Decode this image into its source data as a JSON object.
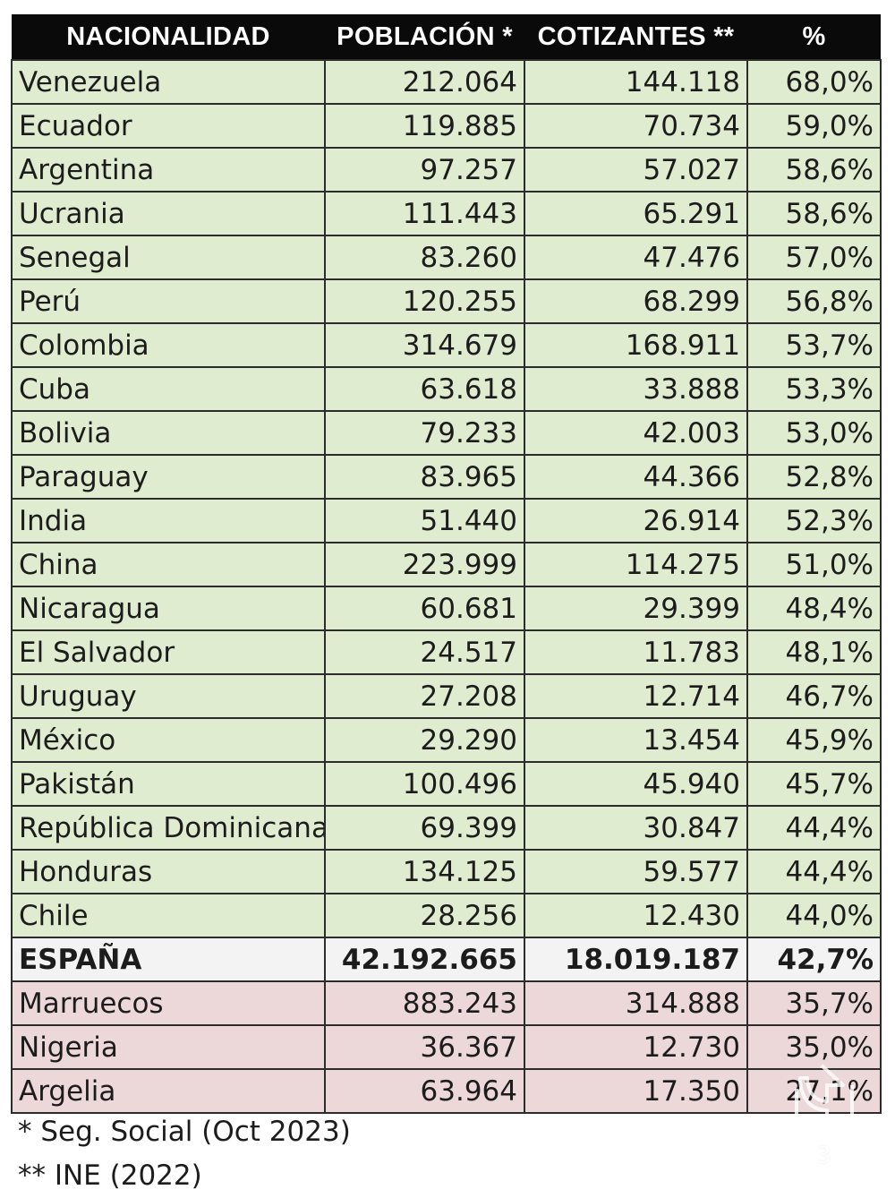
{
  "table": {
    "headers": [
      "NACIONALIDAD",
      "POBLACIÓN *",
      "COTIZANTES **",
      "%"
    ],
    "rows": [
      {
        "nacionalidad": "Venezuela",
        "poblacion": "212.064",
        "cotizantes": "144.118",
        "pct": "68,0%",
        "group": "green"
      },
      {
        "nacionalidad": "Ecuador",
        "poblacion": "119.885",
        "cotizantes": "70.734",
        "pct": "59,0%",
        "group": "green"
      },
      {
        "nacionalidad": "Argentina",
        "poblacion": "97.257",
        "cotizantes": "57.027",
        "pct": "58,6%",
        "group": "green"
      },
      {
        "nacionalidad": "Ucrania",
        "poblacion": "111.443",
        "cotizantes": "65.291",
        "pct": "58,6%",
        "group": "green"
      },
      {
        "nacionalidad": "Senegal",
        "poblacion": "83.260",
        "cotizantes": "47.476",
        "pct": "57,0%",
        "group": "green"
      },
      {
        "nacionalidad": "Perú",
        "poblacion": "120.255",
        "cotizantes": "68.299",
        "pct": "56,8%",
        "group": "green"
      },
      {
        "nacionalidad": "Colombia",
        "poblacion": "314.679",
        "cotizantes": "168.911",
        "pct": "53,7%",
        "group": "green"
      },
      {
        "nacionalidad": "Cuba",
        "poblacion": "63.618",
        "cotizantes": "33.888",
        "pct": "53,3%",
        "group": "green"
      },
      {
        "nacionalidad": "Bolivia",
        "poblacion": "79.233",
        "cotizantes": "42.003",
        "pct": "53,0%",
        "group": "green"
      },
      {
        "nacionalidad": "Paraguay",
        "poblacion": "83.965",
        "cotizantes": "44.366",
        "pct": "52,8%",
        "group": "green"
      },
      {
        "nacionalidad": "India",
        "poblacion": "51.440",
        "cotizantes": "26.914",
        "pct": "52,3%",
        "group": "green"
      },
      {
        "nacionalidad": "China",
        "poblacion": "223.999",
        "cotizantes": "114.275",
        "pct": "51,0%",
        "group": "green"
      },
      {
        "nacionalidad": "Nicaragua",
        "poblacion": "60.681",
        "cotizantes": "29.399",
        "pct": "48,4%",
        "group": "green"
      },
      {
        "nacionalidad": "El Salvador",
        "poblacion": "24.517",
        "cotizantes": "11.783",
        "pct": "48,1%",
        "group": "green"
      },
      {
        "nacionalidad": "Uruguay",
        "poblacion": "27.208",
        "cotizantes": "12.714",
        "pct": "46,7%",
        "group": "green"
      },
      {
        "nacionalidad": "México",
        "poblacion": "29.290",
        "cotizantes": "13.454",
        "pct": "45,9%",
        "group": "green"
      },
      {
        "nacionalidad": "Pakistán",
        "poblacion": "100.496",
        "cotizantes": "45.940",
        "pct": "45,7%",
        "group": "green"
      },
      {
        "nacionalidad": "República Dominicana",
        "poblacion": "69.399",
        "cotizantes": "30.847",
        "pct": "44,4%",
        "group": "green"
      },
      {
        "nacionalidad": "Honduras",
        "poblacion": "134.125",
        "cotizantes": "59.577",
        "pct": "44,4%",
        "group": "green"
      },
      {
        "nacionalidad": "Chile",
        "poblacion": "28.256",
        "cotizantes": "12.430",
        "pct": "44,0%",
        "group": "green"
      },
      {
        "nacionalidad": "ESPAÑA",
        "poblacion": "42.192.665",
        "cotizantes": "18.019.187",
        "pct": "42,7%",
        "group": "white"
      },
      {
        "nacionalidad": "Marruecos",
        "poblacion": "883.243",
        "cotizantes": "314.888",
        "pct": "35,7%",
        "group": "pink"
      },
      {
        "nacionalidad": "Nigeria",
        "poblacion": "36.367",
        "cotizantes": "12.730",
        "pct": "35,0%",
        "group": "pink"
      },
      {
        "nacionalidad": "Argelia",
        "poblacion": "63.964",
        "cotizantes": "17.350",
        "pct": "27,1%",
        "group": "pink"
      }
    ]
  },
  "colors": {
    "header_bg": "#0a0a0a",
    "green_row": "#dfecd0",
    "white_row": "#f3f3f3",
    "pink_row": "#ecd8d8"
  },
  "footnotes": [
    "* Seg. Social (Oct 2023)",
    "** INE (2022)"
  ],
  "watermark": {
    "icon": "share-outline-icon",
    "page_number": "3"
  }
}
